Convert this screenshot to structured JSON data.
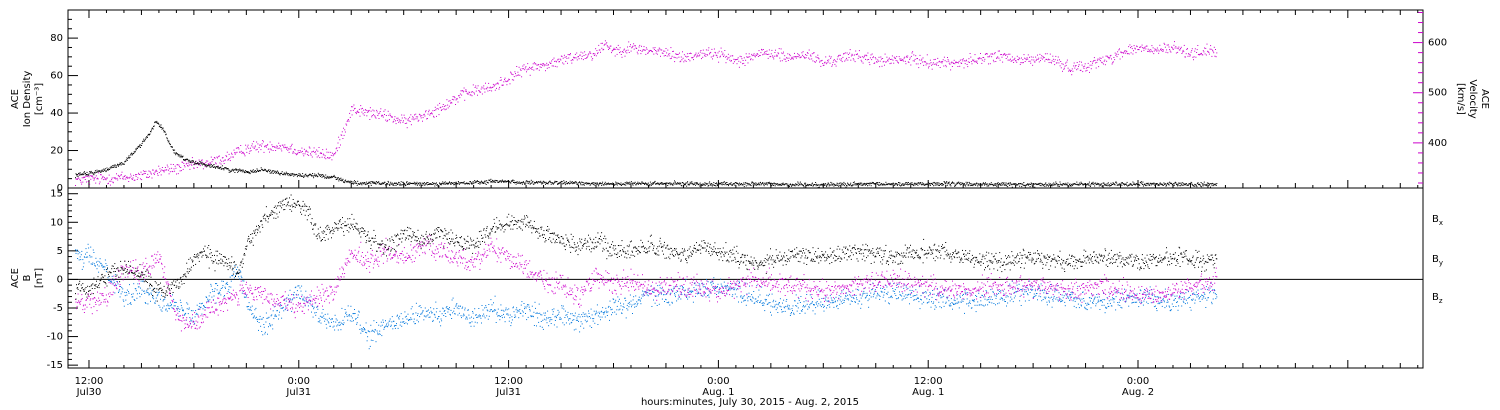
{
  "colors": {
    "black": "#000000",
    "magenta": "#cc00cc",
    "blue": "#0077dd"
  },
  "xaxis": {
    "label": "hours:minutes, July 30, 2015 - Aug.  2, 2015",
    "range_hours": [
      -1.2,
      76.3
    ],
    "ticks": [
      {
        "hours": 0,
        "time": "12:00",
        "date": "Jul30"
      },
      {
        "hours": 12,
        "time": "0:00",
        "date": "Jul31"
      },
      {
        "hours": 24,
        "time": "12:00",
        "date": "Jul31"
      },
      {
        "hours": 36,
        "time": "0:00",
        "date": "Aug. 1"
      },
      {
        "hours": 48,
        "time": "12:00",
        "date": "Aug. 1"
      },
      {
        "hours": 60,
        "time": "0:00",
        "date": "Aug. 2"
      }
    ]
  },
  "chart_data": [
    {
      "type": "scatter",
      "title": "",
      "ylabel_lines": [
        "ACE",
        "Ion Density",
        "[cm⁻³]"
      ],
      "ylim": [
        0,
        95
      ],
      "yticks": [
        0,
        20,
        40,
        60,
        80
      ],
      "y2label_lines": [
        "ACE",
        "Velocity",
        "[km/s]"
      ],
      "y2lim": [
        310,
        665
      ],
      "y2ticks": [
        400,
        500,
        600
      ],
      "grid": false,
      "series": [
        {
          "color": "black",
          "axis": "left",
          "points": [
            [
              -0.8,
              7
            ],
            [
              0,
              8
            ],
            [
              1,
              10
            ],
            [
              2,
              14
            ],
            [
              2.5,
              19
            ],
            [
              3,
              24
            ],
            [
              3.5,
              30
            ],
            [
              3.8,
              36
            ],
            [
              4.2,
              32
            ],
            [
              4.8,
              20
            ],
            [
              5.5,
              15
            ],
            [
              6.5,
              13
            ],
            [
              7,
              12
            ],
            [
              8,
              10
            ],
            [
              9,
              9
            ],
            [
              10,
              10
            ],
            [
              11,
              8
            ],
            [
              12,
              7
            ],
            [
              13,
              7
            ],
            [
              14,
              6
            ],
            [
              15,
              3
            ],
            [
              17,
              2.5
            ],
            [
              20,
              2.5
            ],
            [
              22,
              3
            ],
            [
              23.5,
              4
            ],
            [
              25,
              3
            ],
            [
              27,
              3
            ],
            [
              30,
              2.5
            ],
            [
              36,
              2.5
            ],
            [
              42,
              2
            ],
            [
              48,
              2.5
            ],
            [
              54,
              2
            ],
            [
              60,
              2.5
            ],
            [
              64.5,
              2
            ]
          ]
        },
        {
          "color": "magenta",
          "axis": "right",
          "points": [
            [
              -0.8,
              327
            ],
            [
              0,
              328
            ],
            [
              1,
              330
            ],
            [
              2,
              332
            ],
            [
              3,
              335
            ],
            [
              4,
              345
            ],
            [
              5,
              350
            ],
            [
              6,
              357
            ],
            [
              7,
              362
            ],
            [
              8,
              373
            ],
            [
              9,
              390
            ],
            [
              10,
              395
            ],
            [
              11,
              395
            ],
            [
              12,
              385
            ],
            [
              13,
              380
            ],
            [
              14,
              375
            ],
            [
              15,
              468
            ],
            [
              16,
              460
            ],
            [
              17,
              455
            ],
            [
              18,
              442
            ],
            [
              19,
              455
            ],
            [
              20,
              470
            ],
            [
              21,
              490
            ],
            [
              22,
              505
            ],
            [
              23,
              510
            ],
            [
              24,
              530
            ],
            [
              25,
              550
            ],
            [
              26,
              555
            ],
            [
              27,
              565
            ],
            [
              28,
              575
            ],
            [
              29,
              580
            ],
            [
              29.5,
              600
            ],
            [
              30,
              585
            ],
            [
              31,
              590
            ],
            [
              32,
              585
            ],
            [
              33,
              580
            ],
            [
              34,
              570
            ],
            [
              35,
              580
            ],
            [
              36,
              578
            ],
            [
              37,
              565
            ],
            [
              38,
              575
            ],
            [
              39,
              580
            ],
            [
              40,
              570
            ],
            [
              41,
              578
            ],
            [
              42,
              560
            ],
            [
              43,
              570
            ],
            [
              44,
              575
            ],
            [
              45,
              565
            ],
            [
              46,
              565
            ],
            [
              47,
              568
            ],
            [
              48,
              562
            ],
            [
              49,
              560
            ],
            [
              50,
              562
            ],
            [
              51,
              568
            ],
            [
              52,
              575
            ],
            [
              53,
              565
            ],
            [
              54,
              568
            ],
            [
              55,
              570
            ],
            [
              56,
              550
            ],
            [
              57,
              555
            ],
            [
              58,
              565
            ],
            [
              59,
              580
            ],
            [
              60,
              590
            ],
            [
              61,
              585
            ],
            [
              62,
              590
            ],
            [
              63,
              580
            ],
            [
              64,
              585
            ],
            [
              64.5,
              582
            ]
          ]
        }
      ]
    },
    {
      "type": "scatter",
      "title": "",
      "ylabel_lines": [
        "ACE",
        "B",
        "[nT]"
      ],
      "ylim": [
        -15.5,
        16
      ],
      "yticks": [
        -15,
        -10,
        -5,
        0,
        5,
        10,
        15
      ],
      "zero_line": true,
      "grid": false,
      "legend_position": "right",
      "series": [
        {
          "name": "Bx",
          "color": "black",
          "points": [
            [
              -0.8,
              -2
            ],
            [
              0,
              -1.5
            ],
            [
              1,
              1
            ],
            [
              2,
              2
            ],
            [
              3,
              1
            ],
            [
              4,
              -2
            ],
            [
              5,
              -1
            ],
            [
              5.5,
              1
            ],
            [
              6,
              4
            ],
            [
              6.5,
              5
            ],
            [
              7,
              4
            ],
            [
              8,
              3
            ],
            [
              8.5,
              1
            ],
            [
              9,
              6
            ],
            [
              10,
              11
            ],
            [
              11,
              13
            ],
            [
              12,
              13.5
            ],
            [
              12.5,
              12
            ],
            [
              13,
              8
            ],
            [
              14,
              9
            ],
            [
              15,
              10
            ],
            [
              16,
              7
            ],
            [
              17,
              6
            ],
            [
              18,
              8
            ],
            [
              19,
              7
            ],
            [
              20,
              8
            ],
            [
              21,
              7
            ],
            [
              22,
              6
            ],
            [
              23,
              9
            ],
            [
              24,
              10
            ],
            [
              25,
              10
            ],
            [
              26,
              8
            ],
            [
              27,
              7
            ],
            [
              28,
              6
            ],
            [
              29,
              7
            ],
            [
              30,
              5
            ],
            [
              31,
              5
            ],
            [
              32,
              6
            ],
            [
              33,
              5
            ],
            [
              34,
              4
            ],
            [
              35,
              6
            ],
            [
              36,
              5
            ],
            [
              37,
              4
            ],
            [
              38,
              3
            ],
            [
              40,
              4
            ],
            [
              42,
              4
            ],
            [
              44,
              5
            ],
            [
              46,
              4
            ],
            [
              48,
              5
            ],
            [
              50,
              4
            ],
            [
              52,
              3
            ],
            [
              54,
              4
            ],
            [
              56,
              3
            ],
            [
              58,
              4
            ],
            [
              60,
              3
            ],
            [
              62,
              4
            ],
            [
              64.5,
              3
            ]
          ]
        },
        {
          "name": "By",
          "color": "blue",
          "points": [
            [
              -0.8,
              4
            ],
            [
              0,
              4
            ],
            [
              1,
              2
            ],
            [
              2,
              -3
            ],
            [
              3,
              -2
            ],
            [
              4,
              -3
            ],
            [
              5,
              -5
            ],
            [
              6,
              -6
            ],
            [
              6.5,
              -4
            ],
            [
              7,
              -2
            ],
            [
              8,
              -1
            ],
            [
              8.5,
              2
            ],
            [
              9,
              -4
            ],
            [
              10,
              -8
            ],
            [
              11,
              -5
            ],
            [
              12,
              -2
            ],
            [
              13,
              -6
            ],
            [
              14,
              -8
            ],
            [
              15,
              -6
            ],
            [
              16,
              -10
            ],
            [
              17,
              -8
            ],
            [
              18,
              -7
            ],
            [
              19,
              -6
            ],
            [
              20,
              -6
            ],
            [
              21,
              -5
            ],
            [
              22,
              -7
            ],
            [
              23,
              -5
            ],
            [
              24,
              -6
            ],
            [
              25,
              -5
            ],
            [
              26,
              -7
            ],
            [
              27,
              -6
            ],
            [
              28,
              -7
            ],
            [
              29,
              -6
            ],
            [
              30,
              -5
            ],
            [
              31,
              -4
            ],
            [
              32,
              -2
            ],
            [
              33,
              -3
            ],
            [
              34,
              -2
            ],
            [
              36,
              -1
            ],
            [
              38,
              -3
            ],
            [
              40,
              -5
            ],
            [
              42,
              -4
            ],
            [
              44,
              -3
            ],
            [
              46,
              -2
            ],
            [
              48,
              -3
            ],
            [
              50,
              -4
            ],
            [
              52,
              -3
            ],
            [
              54,
              -2
            ],
            [
              56,
              -3
            ],
            [
              58,
              -4
            ],
            [
              60,
              -3
            ],
            [
              62,
              -4
            ],
            [
              64.5,
              -2
            ]
          ]
        },
        {
          "name": "Bz",
          "color": "magenta",
          "points": [
            [
              -0.8,
              -4
            ],
            [
              0,
              -4
            ],
            [
              1,
              -3
            ],
            [
              2,
              2
            ],
            [
              3,
              1
            ],
            [
              4,
              4
            ],
            [
              5,
              -6
            ],
            [
              6,
              -8
            ],
            [
              7,
              -5
            ],
            [
              8,
              -3
            ],
            [
              9,
              -2
            ],
            [
              10,
              -3
            ],
            [
              11,
              -4
            ],
            [
              12,
              -5
            ],
            [
              13,
              -3
            ],
            [
              14,
              -2
            ],
            [
              15,
              5
            ],
            [
              16,
              3
            ],
            [
              17,
              5
            ],
            [
              18,
              4
            ],
            [
              19,
              6
            ],
            [
              20,
              5
            ],
            [
              21,
              4
            ],
            [
              22,
              3
            ],
            [
              23,
              6
            ],
            [
              24,
              4
            ],
            [
              25,
              2
            ],
            [
              26,
              0
            ],
            [
              27,
              -1
            ],
            [
              28,
              -3
            ],
            [
              29,
              1
            ],
            [
              30,
              -1
            ],
            [
              31,
              0
            ],
            [
              32,
              -2
            ],
            [
              33,
              -1
            ],
            [
              34,
              -1
            ],
            [
              36,
              -2
            ],
            [
              38,
              0
            ],
            [
              40,
              -1
            ],
            [
              42,
              -2
            ],
            [
              44,
              -1
            ],
            [
              46,
              0
            ],
            [
              48,
              -1
            ],
            [
              50,
              -2
            ],
            [
              52,
              -1
            ],
            [
              54,
              -1
            ],
            [
              56,
              -2
            ],
            [
              58,
              -1
            ],
            [
              60,
              -3
            ],
            [
              62,
              -2
            ],
            [
              64.5,
              0
            ]
          ]
        }
      ]
    }
  ]
}
